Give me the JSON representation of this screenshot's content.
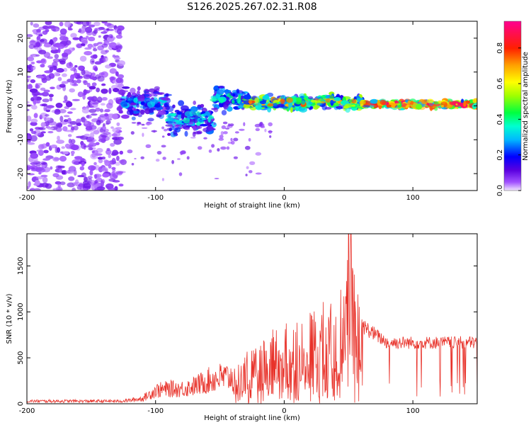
{
  "title": "S126.2025.267.02.31.R08",
  "chart_data": [
    {
      "type": "heatmap",
      "panel": "spectrogram",
      "xlabel": "Height of straight line (km)",
      "ylabel": "Frequency (Hz)",
      "xlim": [
        -200,
        150
      ],
      "ylim": [
        -25,
        25
      ],
      "xticks": [
        -200,
        -100,
        0,
        100
      ],
      "yticks": [
        -20,
        -10,
        0,
        10,
        20
      ],
      "xtick_labels": [
        "-200",
        "-100",
        "0",
        "100"
      ],
      "ytick_labels": [
        "-20",
        "-10",
        "0",
        "10",
        "20"
      ],
      "colorbar": {
        "label": "Normalized spectral amplitude",
        "range": [
          0,
          0.95
        ],
        "ticks": [
          0.0,
          0.2,
          0.4,
          0.6,
          0.8
        ],
        "tick_labels": [
          "0.0",
          "0.2",
          "0.4",
          "0.6",
          "0.8"
        ]
      },
      "regions": [
        {
          "x": [
            -200,
            -125
          ],
          "freq_spread": 25,
          "amplitude": 0.08,
          "description": "broadband noise"
        },
        {
          "x": [
            -125,
            -90
          ],
          "freq_center": 1,
          "freq_spread": 6,
          "amplitude": 0.2
        },
        {
          "x": [
            -90,
            -55
          ],
          "freq_center": -4,
          "freq_spread": 6,
          "amplitude": 0.22
        },
        {
          "x": [
            -55,
            -30
          ],
          "freq_center": 2,
          "freq_spread": 5,
          "amplitude": 0.25
        },
        {
          "x": [
            -30,
            60
          ],
          "freq_center": 1,
          "freq_spread": 3,
          "amplitude": 0.45
        },
        {
          "x": [
            60,
            150
          ],
          "freq_center": 0.5,
          "freq_spread": 1.5,
          "amplitude": 0.7
        }
      ]
    },
    {
      "type": "line",
      "panel": "snr",
      "xlabel": "Height of straight line (km)",
      "ylabel": "SNR (10 * v/v)",
      "xlim": [
        -200,
        150
      ],
      "ylim": [
        0,
        1850
      ],
      "xticks": [
        -200,
        -100,
        0,
        100
      ],
      "yticks": [
        0,
        500,
        1000,
        1500
      ],
      "xtick_labels": [
        "-200",
        "-100",
        "0",
        "100"
      ],
      "ytick_labels": [
        "0",
        "500",
        "1000",
        "1500"
      ],
      "series": [
        {
          "name": "SNR",
          "color": "#e8322a",
          "x": [
            -200,
            -175,
            -150,
            -125,
            -110,
            -100,
            -90,
            -80,
            -70,
            -60,
            -50,
            -40,
            -30,
            -20,
            -10,
            0,
            10,
            20,
            30,
            40,
            45,
            50,
            55,
            60,
            70,
            80,
            90,
            100,
            110,
            120,
            130,
            140,
            150
          ],
          "values": [
            30,
            30,
            30,
            30,
            60,
            150,
            170,
            170,
            200,
            260,
            300,
            300,
            450,
            500,
            650,
            700,
            750,
            800,
            900,
            1000,
            1000,
            1850,
            1100,
            900,
            800,
            700,
            700,
            700,
            700,
            700,
            700,
            700,
            700
          ]
        }
      ]
    }
  ]
}
